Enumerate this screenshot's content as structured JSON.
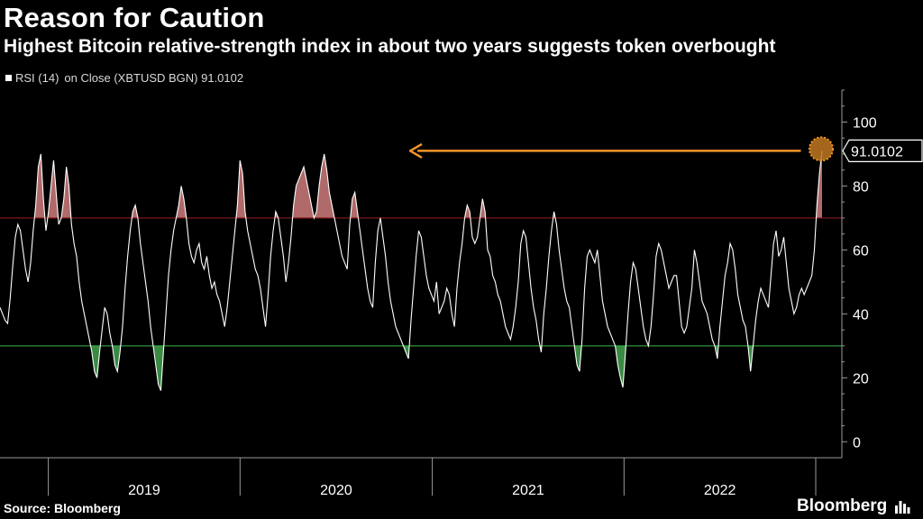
{
  "header": {
    "title": "Reason for Caution",
    "subtitle": "Highest Bitcoin relative-strength index in about two years suggests token overbought"
  },
  "legend": {
    "series_label": "RSI (14)",
    "detail_label": "on Close (XBTUSD BGN) 91.0102"
  },
  "footer": {
    "source": "Source: Bloomberg",
    "brand": "Bloomberg"
  },
  "colors": {
    "background": "#000000",
    "line": "#ffffff",
    "overbought_line": "#8a1c1c",
    "overbought_fill": "#b06a6a",
    "oversold_line": "#3cb84a",
    "oversold_fill": "#3a8a44",
    "annotation": "#f0962a",
    "axis": "#9a9a9a",
    "tick_text": "#ffffff"
  },
  "chart_data": {
    "type": "line",
    "title": "Reason for Caution",
    "subtitle": "Highest Bitcoin relative-strength index in about two years suggests token overbought",
    "series": [
      {
        "name": "RSI (14) on Close (XBTUSD BGN)",
        "last_value": 91.0102,
        "x_start": "2018-10-01",
        "x_end": "2023-01-13",
        "values": [
          42,
          40,
          38,
          37,
          45,
          55,
          64,
          68,
          66,
          60,
          54,
          50,
          56,
          66,
          74,
          86,
          90,
          76,
          66,
          72,
          80,
          88,
          78,
          68,
          70,
          76,
          86,
          80,
          68,
          62,
          58,
          50,
          44,
          40,
          36,
          32,
          28,
          22,
          20,
          28,
          35,
          42,
          40,
          34,
          30,
          24,
          22,
          28,
          36,
          48,
          58,
          66,
          72,
          74,
          70,
          62,
          56,
          50,
          44,
          36,
          30,
          24,
          18,
          16,
          28,
          40,
          52,
          60,
          66,
          70,
          74,
          80,
          76,
          70,
          62,
          58,
          56,
          60,
          62,
          56,
          54,
          58,
          52,
          48,
          50,
          46,
          44,
          40,
          36,
          42,
          50,
          58,
          66,
          74,
          88,
          84,
          72,
          66,
          62,
          58,
          54,
          52,
          48,
          42,
          36,
          46,
          58,
          66,
          72,
          70,
          64,
          58,
          50,
          56,
          64,
          74,
          80,
          82,
          84,
          86,
          82,
          78,
          74,
          70,
          72,
          80,
          86,
          90,
          85,
          78,
          74,
          70,
          66,
          62,
          58,
          56,
          54,
          68,
          76,
          78,
          72,
          66,
          60,
          54,
          48,
          44,
          42,
          56,
          66,
          70,
          64,
          58,
          50,
          44,
          40,
          36,
          34,
          32,
          30,
          28,
          26,
          38,
          48,
          58,
          66,
          64,
          58,
          52,
          48,
          46,
          44,
          50,
          40,
          42,
          44,
          48,
          46,
          40,
          36,
          48,
          56,
          62,
          70,
          74,
          72,
          64,
          62,
          64,
          70,
          76,
          72,
          60,
          58,
          52,
          50,
          46,
          44,
          40,
          36,
          34,
          32,
          36,
          42,
          50,
          62,
          66,
          64,
          56,
          48,
          42,
          38,
          32,
          28,
          40,
          48,
          58,
          66,
          72,
          68,
          60,
          54,
          48,
          44,
          42,
          36,
          30,
          24,
          22,
          32,
          48,
          58,
          60,
          58,
          56,
          60,
          52,
          44,
          40,
          36,
          34,
          32,
          30,
          24,
          20,
          17,
          28,
          40,
          50,
          56,
          54,
          48,
          42,
          36,
          32,
          30,
          36,
          46,
          58,
          62,
          60,
          56,
          52,
          48,
          50,
          52,
          52,
          44,
          36,
          34,
          36,
          42,
          48,
          60,
          56,
          50,
          44,
          42,
          40,
          36,
          32,
          30,
          26,
          36,
          44,
          52,
          56,
          62,
          60,
          54,
          46,
          42,
          38,
          36,
          30,
          22,
          30,
          38,
          44,
          48,
          46,
          44,
          42,
          52,
          62,
          66,
          58,
          60,
          64,
          56,
          48,
          44,
          40,
          42,
          46,
          48,
          46,
          48,
          50,
          52,
          60,
          74,
          84,
          91.01
        ]
      }
    ],
    "xlabel": "",
    "ylabel": "",
    "ylim": [
      -5,
      110
    ],
    "yticks": [
      0,
      20,
      40,
      60,
      80,
      100
    ],
    "reference_lines": [
      {
        "label": "overbought",
        "value": 70
      },
      {
        "label": "oversold",
        "value": 30
      }
    ],
    "year_labels": [
      {
        "label": "2019",
        "start": "2019-01-01",
        "end": "2020-01-01"
      },
      {
        "label": "2020",
        "start": "2020-01-01",
        "end": "2021-01-01"
      },
      {
        "label": "2021",
        "start": "2021-01-01",
        "end": "2022-01-01"
      },
      {
        "label": "2022",
        "start": "2022-01-01",
        "end": "2023-01-01"
      }
    ],
    "year_boundaries": [
      "2019-01-01",
      "2020-01-01",
      "2021-01-01",
      "2022-01-01",
      "2023-01-01"
    ],
    "annotation": {
      "value_label": "91.0102",
      "arrow_from_date": "2023-01-07",
      "arrow_to_date": "2020-11-20",
      "arrow_value": 91
    },
    "grid": false,
    "legend_position": "top-left"
  }
}
